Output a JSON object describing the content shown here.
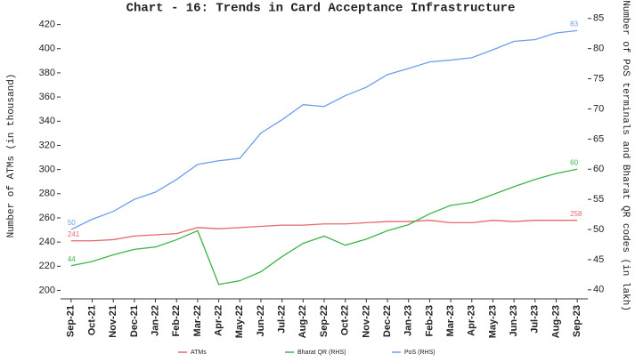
{
  "chart_data": {
    "type": "line",
    "title": "Chart - 16: Trends in Card Acceptance Infrastructure",
    "y_label": "Number of ATMs (in thousand)",
    "y2_label": "Number of PoS terminals and Bharat QR codes (in lakh)",
    "categories": [
      "Sep-21",
      "Oct-21",
      "Nov-21",
      "Dec-21",
      "Jan-22",
      "Feb-22",
      "Mar-22",
      "Apr-22",
      "May-22",
      "Jun-22",
      "Jul-22",
      "Aug-22",
      "Sep-22",
      "Oct-22",
      "Nov-22",
      "Dec-22",
      "Jan-23",
      "Feb-23",
      "Mar-23",
      "Apr-23",
      "May-23",
      "Jun-23",
      "Jul-23",
      "Aug-23",
      "Sep-23"
    ],
    "series": [
      {
        "name": "ATMs",
        "color": "#e8676b",
        "values": [
          241,
          241,
          242,
          245,
          246,
          247,
          252,
          251,
          252,
          253,
          254,
          254,
          255,
          255,
          256,
          257,
          257,
          258,
          256,
          256,
          258,
          257,
          258,
          258,
          258
        ]
      },
      {
        "name": "Bharat QR (RHS)",
        "color": "#3cb44b",
        "axis": "y2",
        "values": [
          44,
          44.7,
          45.8,
          46.7,
          47.1,
          48.3,
          49.8,
          40.9,
          41.5,
          43,
          45.5,
          47.7,
          48.9,
          47.4,
          48.4,
          49.8,
          50.8,
          52.6,
          54,
          54.5,
          55.8,
          57.1,
          58.3,
          59.3,
          60
        ]
      },
      {
        "name": "PoS (RHS)",
        "color": "#6d9eeb",
        "axis": "y2",
        "values": [
          50,
          51.7,
          53,
          55,
          56.2,
          58.3,
          60.8,
          61.4,
          61.8,
          66,
          68.2,
          70.7,
          70.4,
          72.2,
          73.6,
          75.7,
          76.7,
          77.8,
          78.1,
          78.5,
          79.8,
          81.2,
          81.5,
          82.6,
          83
        ]
      }
    ],
    "data_labels": "ends",
    "ylim": [
      193,
      430
    ],
    "yticks": [
      200,
      220,
      240,
      260,
      280,
      300,
      320,
      340,
      360,
      380,
      400,
      420
    ],
    "y2lim": [
      38.5,
      86
    ],
    "y2ticks": [
      40,
      45,
      50,
      55,
      60,
      65,
      70,
      75,
      80,
      85
    ],
    "legend": "bottom"
  }
}
